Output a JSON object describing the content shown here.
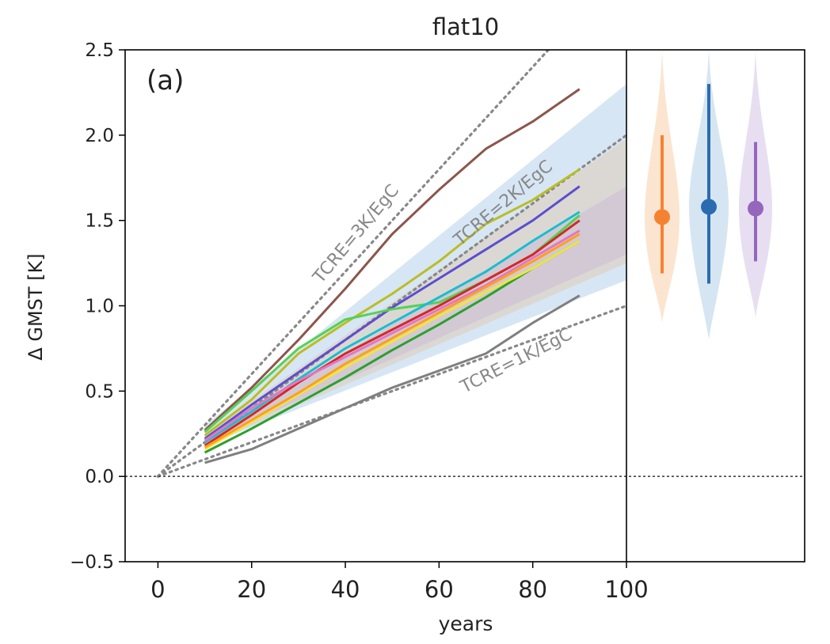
{
  "chart_data": {
    "type": "line",
    "title": "flat10",
    "panel_label": "(a)",
    "xlabel": "years",
    "ylabel": "Δ GMST [K]",
    "xlim": [
      -7,
      100
    ],
    "ylim": [
      -0.5,
      2.5
    ],
    "xticks": [
      "0",
      "20",
      "40",
      "60",
      "80",
      "100"
    ],
    "yticks": [
      "−0.5",
      "0.0",
      "0.5",
      "1.0",
      "1.5",
      "2.0",
      "2.5"
    ],
    "zero_line": 0.0,
    "tcre_lines": [
      {
        "label": "TCRE=1K/EgC",
        "slope_per_year": 0.01
      },
      {
        "label": "TCRE=2K/EgC",
        "slope_per_year": 0.02
      },
      {
        "label": "TCRE=3K/EgC",
        "slope_per_year": 0.03
      }
    ],
    "shaded_ranges": [
      {
        "color": "#c6dbef",
        "x": [
          10,
          100
        ],
        "lower": [
          0.18,
          1.15
        ],
        "upper": [
          0.3,
          2.3
        ]
      },
      {
        "color": "#ddd1c6",
        "x": [
          10,
          100
        ],
        "lower": [
          0.18,
          1.25
        ],
        "upper": [
          0.25,
          1.98
        ]
      },
      {
        "color": "#cfc3d6",
        "x": [
          10,
          100
        ],
        "lower": [
          0.2,
          1.3
        ],
        "upper": [
          0.24,
          1.7
        ]
      }
    ],
    "series": [
      {
        "color": "#8c564b",
        "x": [
          10,
          20,
          30,
          40,
          50,
          60,
          70,
          80,
          90
        ],
        "y": [
          0.27,
          0.52,
          0.8,
          1.1,
          1.42,
          1.68,
          1.92,
          2.08,
          2.27
        ]
      },
      {
        "color": "#bcbd22",
        "x": [
          10,
          20,
          30,
          40,
          50,
          60,
          70,
          80,
          90
        ],
        "y": [
          0.24,
          0.45,
          0.72,
          0.9,
          1.07,
          1.26,
          1.48,
          1.62,
          1.8
        ]
      },
      {
        "color": "#5b4fcf",
        "x": [
          10,
          20,
          30,
          40,
          50,
          60,
          70,
          80,
          90
        ],
        "y": [
          0.22,
          0.42,
          0.61,
          0.8,
          0.99,
          1.16,
          1.33,
          1.5,
          1.7
        ]
      },
      {
        "color": "#2ca02c",
        "x": [
          10,
          20,
          30,
          40,
          50,
          60,
          70,
          80,
          90
        ],
        "y": [
          0.14,
          0.28,
          0.43,
          0.58,
          0.74,
          0.89,
          1.05,
          1.22,
          1.38
        ]
      },
      {
        "color": "#55d155",
        "x": [
          10,
          20,
          30,
          40,
          50,
          60,
          70,
          80,
          90
        ],
        "y": [
          0.26,
          0.5,
          0.75,
          0.92,
          0.98,
          1.02,
          1.15,
          1.3,
          1.53
        ]
      },
      {
        "color": "#17becf",
        "x": [
          10,
          20,
          30,
          40,
          50,
          60,
          70,
          80,
          90
        ],
        "y": [
          0.2,
          0.38,
          0.57,
          0.75,
          0.9,
          1.05,
          1.2,
          1.38,
          1.55
        ]
      },
      {
        "color": "#d62728",
        "x": [
          10,
          20,
          30,
          40,
          50,
          60,
          70,
          80,
          90
        ],
        "y": [
          0.18,
          0.36,
          0.55,
          0.72,
          0.86,
          1.0,
          1.15,
          1.3,
          1.5
        ]
      },
      {
        "color": "#e377c2",
        "x": [
          10,
          20,
          30,
          40,
          50,
          60,
          70,
          80,
          90
        ],
        "y": [
          0.21,
          0.4,
          0.56,
          0.7,
          0.84,
          0.98,
          1.12,
          1.28,
          1.44
        ]
      },
      {
        "color": "#f0e442",
        "x": [
          10,
          20,
          30,
          40,
          50,
          60,
          70,
          80,
          90
        ],
        "y": [
          0.16,
          0.32,
          0.48,
          0.64,
          0.79,
          0.94,
          1.08,
          1.22,
          1.38
        ]
      },
      {
        "color": "#ff9f1c",
        "x": [
          10,
          20,
          30,
          40,
          50,
          60,
          70,
          80,
          90
        ],
        "y": [
          0.17,
          0.33,
          0.49,
          0.66,
          0.81,
          0.96,
          1.11,
          1.26,
          1.42
        ]
      },
      {
        "color": "#7f7f7f",
        "x": [
          10,
          20,
          30,
          40,
          50,
          60,
          70,
          80,
          90
        ],
        "y": [
          0.08,
          0.16,
          0.28,
          0.4,
          0.52,
          0.62,
          0.72,
          0.9,
          1.06
        ]
      }
    ],
    "violins": [
      {
        "color": "#f58231",
        "fill": "#fbe0c8",
        "min": 0.9,
        "max": 2.5,
        "whisker_low": 1.19,
        "whisker_high": 2.0,
        "median": 1.52
      },
      {
        "color": "#2b6cb0",
        "fill": "#cfe0f0",
        "min": 0.8,
        "max": 2.5,
        "whisker_low": 1.13,
        "whisker_high": 2.3,
        "median": 1.58
      },
      {
        "color": "#9467bd",
        "fill": "#e3d9ef",
        "min": 0.93,
        "max": 2.5,
        "whisker_low": 1.26,
        "whisker_high": 1.96,
        "median": 1.57
      }
    ]
  }
}
